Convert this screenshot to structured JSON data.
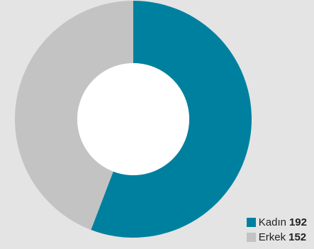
{
  "chart_data": {
    "type": "pie",
    "title": "",
    "donut": true,
    "categories": [
      "Kadın",
      "Erkek"
    ],
    "values": [
      192,
      152
    ],
    "value_labels": [
      "192",
      "152"
    ],
    "colors": [
      "#00809f",
      "#c3c3c3"
    ],
    "start": "top, clockwise",
    "legend_position": "bottom-right"
  }
}
